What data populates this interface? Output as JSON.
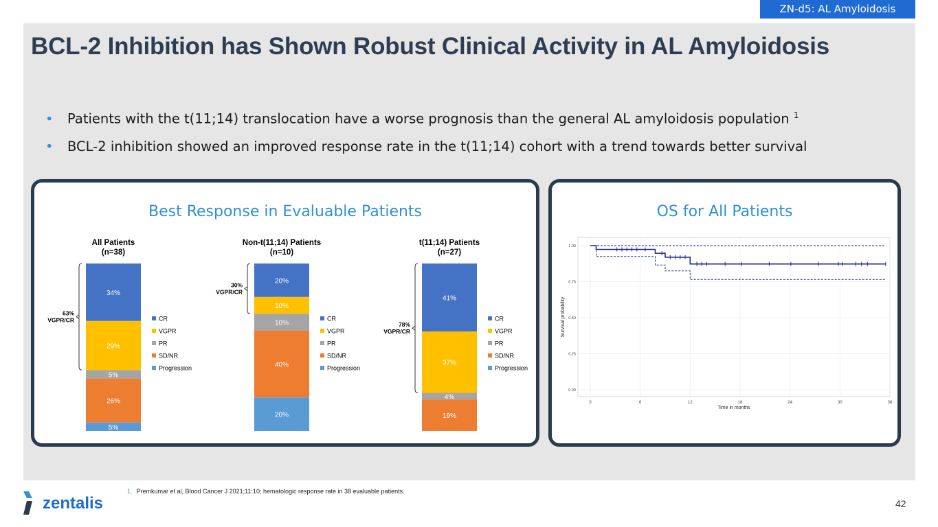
{
  "tag": "ZN-d5: AL Amyloidosis",
  "title": "BCL-2 Inhibition has Shown Robust Clinical Activity in AL Amyloidosis",
  "bullets": [
    {
      "text": "Patients with the t(11;14) translocation have a worse prognosis than the general AL amyloidosis population",
      "sup": "1"
    },
    {
      "text": "BCL-2 inhibition showed an improved response rate in the t(11;14) cohort with a trend towards better survival",
      "sup": ""
    }
  ],
  "panels": {
    "left_title": "Best Response in Evaluable Patients",
    "right_title": "OS for All Patients"
  },
  "colors": {
    "CR": "#4472c4",
    "VGPR": "#ffc000",
    "PR": "#a5a5a5",
    "SD/NR": "#ed7d31",
    "Progression": "#5b9bd5",
    "km": "#1f2a8a"
  },
  "chart_data": [
    {
      "type": "bar",
      "stacked": true,
      "categories": [
        "CR",
        "VGPR",
        "PR",
        "SD/NR",
        "Progression"
      ],
      "legend": [
        "CR",
        "VGPR",
        "PR",
        "SD/NR",
        "Progression"
      ],
      "groups": [
        {
          "title": "All Patients",
          "subtitle": "(n=38)",
          "values": [
            34,
            29,
            5,
            26,
            5
          ],
          "labels": [
            "34%",
            "29%",
            "5%",
            "26%",
            "5%"
          ],
          "bracket": "63%",
          "bracket_label": "VGPR/CR"
        },
        {
          "title": "Non-t(11;14) Patients",
          "subtitle": "(n=10)",
          "values": [
            20,
            10,
            10,
            40,
            20
          ],
          "labels": [
            "20%",
            "10%",
            "10%",
            "40%",
            "20%"
          ],
          "bracket": "30%",
          "bracket_label": "VGPR/CR"
        },
        {
          "title": "t(11;14) Patients",
          "subtitle": "(n=27)",
          "values": [
            41,
            37,
            4,
            19,
            0
          ],
          "labels": [
            "41%",
            "37%",
            "4%",
            "19%",
            ""
          ],
          "bracket": "78%",
          "bracket_label": "VGPR/CR"
        }
      ]
    },
    {
      "type": "line",
      "xlabel": "Time in months",
      "ylabel": "Survival probability",
      "xticks": [
        "0",
        "6",
        "12",
        "18",
        "24",
        "30",
        "36"
      ],
      "yticks": [
        "0.00",
        "0.25",
        "0.50",
        "0.75",
        "1.00"
      ],
      "xlim": [
        0,
        36
      ],
      "ylim": [
        0,
        1
      ],
      "grid": true,
      "series": [
        {
          "role": "estimate",
          "points": [
            [
              0,
              1.0
            ],
            [
              0.7,
              1.0
            ],
            [
              0.7,
              0.974
            ],
            [
              7.8,
              0.974
            ],
            [
              7.8,
              0.947
            ],
            [
              9,
              0.947
            ],
            [
              9,
              0.92
            ],
            [
              12,
              0.92
            ],
            [
              12,
              0.873
            ],
            [
              35.5,
              0.873
            ]
          ]
        },
        {
          "role": "upper",
          "points": [
            [
              0,
              1.0
            ],
            [
              35.5,
              1.0
            ]
          ]
        },
        {
          "role": "lower",
          "points": [
            [
              0,
              1.0
            ],
            [
              0.7,
              1.0
            ],
            [
              0.7,
              0.925
            ],
            [
              7.8,
              0.925
            ],
            [
              7.8,
              0.865
            ],
            [
              9,
              0.865
            ],
            [
              9,
              0.825
            ],
            [
              12,
              0.825
            ],
            [
              12,
              0.765
            ],
            [
              35.5,
              0.765
            ]
          ]
        }
      ],
      "censor": {
        "x": [
          3.2,
          3.8,
          4.4,
          5.0,
          5.6,
          6.6,
          8.6,
          9.6,
          10.2,
          10.8,
          11.4,
          12.8,
          13.4,
          14.0,
          16.2,
          18.2,
          21.5,
          24.1,
          27.4,
          29.8,
          30.3,
          31.9,
          32.6,
          33.3,
          35.5
        ],
        "y": [
          0.974,
          0.974,
          0.974,
          0.974,
          0.974,
          0.974,
          0.947,
          0.92,
          0.92,
          0.92,
          0.92,
          0.873,
          0.873,
          0.873,
          0.873,
          0.873,
          0.873,
          0.873,
          0.873,
          0.873,
          0.873,
          0.873,
          0.873,
          0.873,
          0.873
        ]
      }
    }
  ],
  "footnote": {
    "num": "1.",
    "text": "Premkumar et al, Blood Cancer J 2021;11:10; hematologic response rate in 38 evaluable patients."
  },
  "page_number": "42",
  "logo_text": "zentalis"
}
